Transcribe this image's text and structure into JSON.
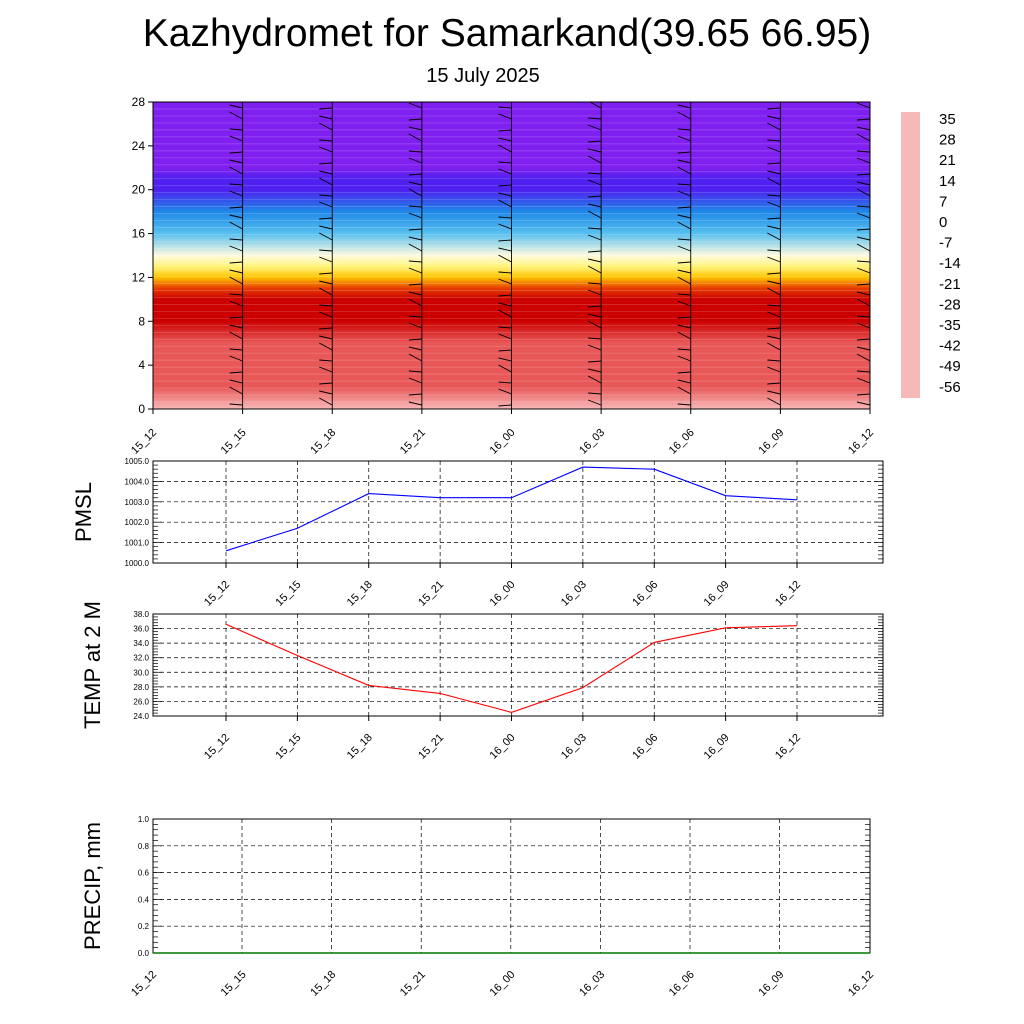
{
  "title": "Kazhydromet for Samarkand(39.65 66.95)",
  "subtitle": "15 July 2025",
  "colors": {
    "pmsl_line": "#0000ff",
    "temp_line": "#ff0000",
    "precip_line": "#007a00",
    "palette": [
      "#f7b8b8",
      "#e85858",
      "#cc0000",
      "#e63c00",
      "#ff8c00",
      "#ffc400",
      "#fff47a",
      "#fffbe0",
      "#c8e8f8",
      "#58c0ef",
      "#1e88e8",
      "#1010e8",
      "#5020f0",
      "#8020f0"
    ]
  },
  "chart_data": [
    {
      "type": "heatmap",
      "ylabel": "",
      "x_ticks": [
        "15_12",
        "15_15",
        "15_18",
        "15_21",
        "16_00",
        "16_03",
        "16_06",
        "16_09",
        "16_12"
      ],
      "y_ticks": [
        "0",
        "4",
        "8",
        "12",
        "16",
        "20",
        "24",
        "28"
      ],
      "ylim": [
        0,
        28
      ],
      "colorbar_labels": [
        "35",
        "28",
        "21",
        "14",
        "7",
        "0",
        "-7",
        "-14",
        "-21",
        "-28",
        "-35",
        "-42",
        "-49",
        "-56"
      ],
      "colorbar_range": [
        -60,
        38
      ],
      "profile_levels": [
        0,
        2,
        4,
        6,
        8,
        10,
        11,
        12,
        13,
        14,
        16,
        18,
        20,
        21,
        22,
        24,
        28
      ],
      "profile_values": [
        36,
        34,
        31,
        28,
        25,
        20,
        14,
        4,
        -10,
        -16,
        -28,
        -40,
        -50,
        -56,
        -60,
        -60,
        -60
      ],
      "overlay": "wind barbs"
    },
    {
      "type": "line",
      "ylabel": "PMSL",
      "x_ticks": [
        "15_12",
        "15_15",
        "15_18",
        "15_21",
        "16_00",
        "16_03",
        "16_06",
        "16_09",
        "16_12"
      ],
      "y_ticks": [
        "1000.0",
        "1001.0",
        "1002.0",
        "1003.0",
        "1004.0",
        "1005.0"
      ],
      "ylim": [
        1000.0,
        1005.0
      ],
      "values": [
        1000.6,
        1001.7,
        1003.4,
        1003.2,
        1003.2,
        1004.7,
        1004.6,
        1003.3,
        1003.1
      ]
    },
    {
      "type": "line",
      "ylabel": "TEMP at 2 M",
      "x_ticks": [
        "15_12",
        "15_15",
        "15_18",
        "15_21",
        "16_00",
        "16_03",
        "16_06",
        "16_09",
        "16_12"
      ],
      "y_ticks": [
        "24.0",
        "26.0",
        "28.0",
        "30.0",
        "32.0",
        "34.0",
        "36.0",
        "38.0"
      ],
      "ylim": [
        24.0,
        38.0
      ],
      "values": [
        36.6,
        32.3,
        28.2,
        27.1,
        24.5,
        27.9,
        34.1,
        36.1,
        36.4
      ]
    },
    {
      "type": "line",
      "ylabel": "PRECIP, mm",
      "x_ticks": [
        "15_12",
        "15_15",
        "15_18",
        "15_21",
        "16_00",
        "16_03",
        "16_06",
        "16_09",
        "16_12"
      ],
      "y_ticks": [
        "0.0",
        "0.2",
        "0.4",
        "0.6",
        "0.8",
        "1.0"
      ],
      "ylim": [
        0.0,
        1.0
      ],
      "values": [
        0,
        0,
        0,
        0,
        0,
        0,
        0,
        0,
        0
      ]
    }
  ]
}
